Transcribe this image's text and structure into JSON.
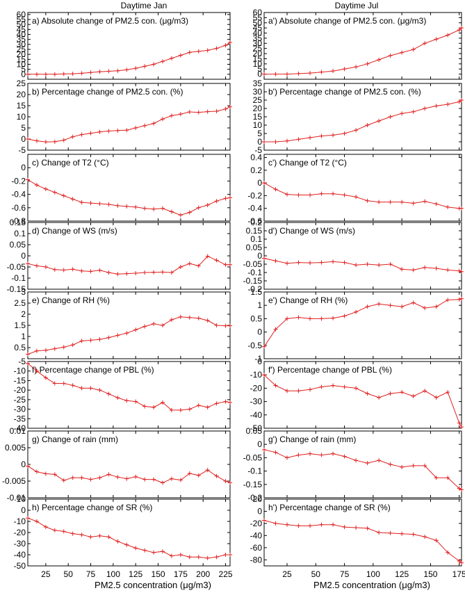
{
  "columns": [
    {
      "title": "Daytime Jan",
      "xlabel": "PM2.5 concentration (μg/m3)",
      "xticks": [
        "25",
        "50",
        "75",
        "100",
        "125",
        "150",
        "175",
        "200",
        "225"
      ]
    },
    {
      "title": "Daytime Jul",
      "xlabel": "PM2.5 concentration (μg/m3)",
      "xticks": [
        "25",
        "50",
        "75",
        "100",
        "125",
        "150",
        "175"
      ]
    }
  ],
  "chart_data": [
    {
      "type": "line",
      "column": 0,
      "label": "a) Absolute change of PM2.5 con. (μg/m3)",
      "xlim": [
        5,
        230
      ],
      "ylim": [
        -5,
        62
      ],
      "yticks": [
        0,
        5,
        10,
        15,
        20,
        25,
        30,
        35,
        40,
        45,
        50,
        55,
        60
      ],
      "x": [
        5,
        15,
        25,
        35,
        45,
        55,
        65,
        75,
        85,
        95,
        105,
        115,
        125,
        135,
        145,
        155,
        165,
        175,
        185,
        195,
        205,
        215,
        225,
        230
      ],
      "values": [
        0,
        0,
        0,
        0,
        0.3,
        0.5,
        1,
        1.8,
        2.5,
        3,
        3.5,
        4.5,
        6,
        8,
        10,
        13,
        16,
        19,
        22,
        23,
        24,
        26,
        29,
        32
      ]
    },
    {
      "type": "line",
      "column": 0,
      "label": "b) Percentage change of PM2.5 con. (%)",
      "xlim": [
        5,
        230
      ],
      "ylim": [
        -5,
        25
      ],
      "yticks": [
        -5,
        0,
        5,
        10,
        15,
        20,
        25
      ],
      "x": [
        5,
        15,
        25,
        35,
        45,
        55,
        65,
        75,
        85,
        95,
        105,
        115,
        125,
        135,
        145,
        155,
        165,
        175,
        185,
        195,
        205,
        215,
        225,
        230
      ],
      "values": [
        0,
        -0.8,
        -1.3,
        -1.2,
        -0.5,
        1,
        2,
        2.6,
        3.2,
        3.6,
        3.8,
        4,
        5,
        6,
        7,
        9,
        10.5,
        11.2,
        12.2,
        12,
        12.3,
        12.5,
        13.5,
        14.5
      ]
    },
    {
      "type": "line",
      "column": 0,
      "label": "c) Change of T2 (°C)",
      "xlim": [
        5,
        230
      ],
      "ylim": [
        -0.8,
        0.2
      ],
      "yticks": [
        -0.8,
        -0.6,
        -0.4,
        -0.2,
        0
      ],
      "x": [
        5,
        15,
        25,
        35,
        45,
        55,
        65,
        75,
        85,
        95,
        105,
        115,
        125,
        135,
        145,
        155,
        165,
        175,
        185,
        195,
        205,
        215,
        225,
        230
      ],
      "values": [
        -0.18,
        -0.26,
        -0.32,
        -0.37,
        -0.42,
        -0.47,
        -0.52,
        -0.53,
        -0.54,
        -0.55,
        -0.57,
        -0.58,
        -0.59,
        -0.61,
        -0.62,
        -0.61,
        -0.66,
        -0.71,
        -0.67,
        -0.6,
        -0.56,
        -0.5,
        -0.46,
        -0.45
      ]
    },
    {
      "type": "line",
      "column": 0,
      "label": "d) Change of WS (m/s)",
      "xlim": [
        5,
        230
      ],
      "ylim": [
        -0.15,
        0.15
      ],
      "yticks": [
        -0.15,
        -0.1,
        -0.05,
        0,
        0.05,
        0.1,
        0.15
      ],
      "x": [
        5,
        15,
        25,
        35,
        45,
        55,
        65,
        75,
        85,
        95,
        105,
        115,
        125,
        135,
        145,
        155,
        165,
        175,
        185,
        195,
        205,
        215,
        225,
        230
      ],
      "values": [
        -0.035,
        -0.045,
        -0.05,
        -0.062,
        -0.064,
        -0.06,
        -0.068,
        -0.07,
        -0.065,
        -0.075,
        -0.082,
        -0.08,
        -0.078,
        -0.075,
        -0.074,
        -0.073,
        -0.075,
        -0.05,
        -0.035,
        -0.045,
        -0.002,
        -0.02,
        -0.04,
        -0.04
      ]
    },
    {
      "type": "line",
      "column": 0,
      "label": "e) Change of RH (%)",
      "xlim": [
        5,
        230
      ],
      "ylim": [
        0,
        3
      ],
      "yticks": [
        0.5,
        1,
        1.5,
        2,
        2.5,
        3
      ],
      "x": [
        5,
        15,
        25,
        35,
        45,
        55,
        65,
        75,
        85,
        95,
        105,
        115,
        125,
        135,
        145,
        155,
        165,
        175,
        185,
        195,
        205,
        215,
        225,
        230
      ],
      "values": [
        0.2,
        0.35,
        0.38,
        0.45,
        0.52,
        0.62,
        0.8,
        0.83,
        0.87,
        0.95,
        1.05,
        1.15,
        1.3,
        1.45,
        1.57,
        1.5,
        1.75,
        1.88,
        1.85,
        1.82,
        1.72,
        1.5,
        1.48,
        1.48
      ]
    },
    {
      "type": "line",
      "column": 0,
      "label": "f) Percentage change of PBL (%)",
      "xlim": [
        5,
        230
      ],
      "ylim": [
        -40,
        -5
      ],
      "yticks": [
        -40,
        -35,
        -30,
        -25,
        -20,
        -15,
        -10,
        -5
      ],
      "x": [
        5,
        15,
        25,
        35,
        45,
        55,
        65,
        75,
        85,
        95,
        105,
        115,
        125,
        135,
        145,
        155,
        165,
        175,
        185,
        195,
        205,
        215,
        225,
        230
      ],
      "values": [
        -6,
        -10,
        -13.5,
        -16.5,
        -16.5,
        -17.5,
        -19,
        -19,
        -20,
        -22,
        -24,
        -25.5,
        -26,
        -28.5,
        -29,
        -26.5,
        -30.5,
        -30.5,
        -30,
        -28,
        -29,
        -27,
        -26,
        -26.5
      ]
    },
    {
      "type": "line",
      "column": 0,
      "label": "g) Change of rain (mm)",
      "xlim": [
        5,
        230
      ],
      "ylim": [
        -0.01,
        0.01
      ],
      "yticks": [
        -0.01,
        -0.005,
        0,
        0.005,
        0.01
      ],
      "x": [
        5,
        15,
        25,
        35,
        45,
        55,
        65,
        75,
        85,
        95,
        105,
        115,
        125,
        135,
        145,
        155,
        165,
        175,
        185,
        195,
        205,
        215,
        225,
        230
      ],
      "values": [
        -0.0005,
        -0.0022,
        -0.0028,
        -0.003,
        -0.0048,
        -0.004,
        -0.004,
        -0.0045,
        -0.004,
        -0.003,
        -0.0038,
        -0.0043,
        -0.0037,
        -0.0045,
        -0.0045,
        -0.0055,
        -0.0043,
        -0.0047,
        -0.0027,
        -0.0033,
        -0.0017,
        -0.0035,
        -0.005,
        -0.0055
      ]
    },
    {
      "type": "line",
      "column": 0,
      "label": "h) Percentage change of SR (%)",
      "xlim": [
        5,
        230
      ],
      "ylim": [
        -50,
        10
      ],
      "yticks": [
        -50,
        -40,
        -30,
        -20,
        -10,
        0,
        10
      ],
      "x": [
        5,
        15,
        25,
        35,
        45,
        55,
        65,
        75,
        85,
        95,
        105,
        115,
        125,
        135,
        145,
        155,
        165,
        175,
        185,
        195,
        205,
        215,
        225,
        230
      ],
      "values": [
        -7,
        -10,
        -15,
        -18,
        -19,
        -21,
        -22,
        -24,
        -23,
        -24,
        -28,
        -31,
        -34,
        -36,
        -38,
        -37,
        -41,
        -40,
        -42,
        -42,
        -43,
        -42,
        -40,
        -40
      ]
    },
    {
      "type": "line",
      "column": 1,
      "label": "a') Absolute change of PM2.5 con. (μg/m3)",
      "xlim": [
        5,
        177
      ],
      "ylim": [
        -5,
        60
      ],
      "yticks": [
        0,
        5,
        10,
        15,
        20,
        25,
        30,
        35,
        40,
        45,
        50,
        55,
        60
      ],
      "x": [
        5,
        15,
        25,
        35,
        45,
        55,
        65,
        75,
        85,
        95,
        105,
        115,
        125,
        135,
        145,
        155,
        165,
        175,
        177
      ],
      "values": [
        0,
        0,
        0,
        0.5,
        1,
        2,
        3,
        5,
        7,
        10,
        14,
        18,
        21,
        24,
        30,
        34,
        38,
        43,
        45
      ]
    },
    {
      "type": "line",
      "column": 1,
      "label": "b') Percentage change of PM2.5 con. (%)",
      "xlim": [
        5,
        177
      ],
      "ylim": [
        -5,
        35
      ],
      "yticks": [
        -5,
        0,
        5,
        10,
        15,
        20,
        25,
        30,
        35
      ],
      "x": [
        5,
        15,
        25,
        35,
        45,
        55,
        65,
        75,
        85,
        95,
        105,
        115,
        125,
        135,
        145,
        155,
        165,
        175,
        177
      ],
      "values": [
        0,
        0,
        0.5,
        1.5,
        2.5,
        3.5,
        4,
        5,
        7,
        10,
        12.5,
        15,
        17,
        18,
        20,
        21.5,
        22.5,
        24,
        25
      ]
    },
    {
      "type": "line",
      "column": 1,
      "label": "c') Change of T2 (°C)",
      "xlim": [
        5,
        177
      ],
      "ylim": [
        -0.6,
        0.45
      ],
      "yticks": [
        -0.6,
        -0.4,
        -0.2,
        0,
        0.2,
        0.4
      ],
      "x": [
        5,
        15,
        25,
        35,
        45,
        55,
        65,
        75,
        85,
        95,
        105,
        115,
        125,
        135,
        145,
        155,
        165,
        175,
        177
      ],
      "values": [
        0,
        -0.1,
        -0.18,
        -0.19,
        -0.19,
        -0.17,
        -0.17,
        -0.19,
        -0.22,
        -0.28,
        -0.3,
        -0.3,
        -0.3,
        -0.32,
        -0.29,
        -0.33,
        -0.38,
        -0.4,
        -0.4
      ]
    },
    {
      "type": "line",
      "column": 1,
      "label": "d') Change of WS (m/s)",
      "xlim": [
        5,
        177
      ],
      "ylim": [
        -0.2,
        0.2
      ],
      "yticks": [
        -0.2,
        -0.15,
        -0.1,
        -0.05,
        0,
        0.05,
        0.1,
        0.15,
        0.2
      ],
      "x": [
        5,
        15,
        25,
        35,
        45,
        55,
        65,
        75,
        85,
        95,
        105,
        115,
        125,
        135,
        145,
        155,
        165,
        175,
        177
      ],
      "values": [
        -0.015,
        -0.03,
        -0.045,
        -0.04,
        -0.042,
        -0.04,
        -0.035,
        -0.04,
        -0.055,
        -0.05,
        -0.055,
        -0.05,
        -0.08,
        -0.085,
        -0.07,
        -0.075,
        -0.085,
        -0.09,
        -0.095
      ]
    },
    {
      "type": "line",
      "column": 1,
      "label": "e') Change of RH (%)",
      "xlim": [
        5,
        177
      ],
      "ylim": [
        -1,
        1.5
      ],
      "yticks": [
        -1,
        -0.5,
        0,
        0.5,
        1,
        1.5
      ],
      "x": [
        5,
        15,
        25,
        35,
        45,
        55,
        65,
        75,
        85,
        95,
        105,
        115,
        125,
        135,
        145,
        155,
        165,
        175,
        177
      ],
      "values": [
        -0.55,
        0.1,
        0.5,
        0.55,
        0.5,
        0.5,
        0.52,
        0.6,
        0.75,
        0.95,
        1.05,
        1.0,
        0.95,
        1.1,
        0.9,
        0.95,
        1.2,
        1.22,
        1.25
      ]
    },
    {
      "type": "line",
      "column": 1,
      "label": "f') Percentage change of PBL (%)",
      "xlim": [
        5,
        177
      ],
      "ylim": [
        -50,
        0
      ],
      "yticks": [
        -50,
        -40,
        -30,
        -20,
        -10,
        0
      ],
      "x": [
        5,
        15,
        25,
        35,
        45,
        55,
        65,
        75,
        85,
        95,
        105,
        115,
        125,
        135,
        145,
        155,
        165,
        175,
        177
      ],
      "values": [
        -10,
        -18,
        -22,
        -22,
        -21,
        -19,
        -18,
        -19,
        -20,
        -24,
        -27,
        -24,
        -23,
        -26,
        -22,
        -27,
        -23,
        -46,
        -49
      ]
    },
    {
      "type": "line",
      "column": 1,
      "label": "g') Change of rain (mm)",
      "xlim": [
        5,
        177
      ],
      "ylim": [
        -0.2,
        0.05
      ],
      "yticks": [
        -0.2,
        -0.15,
        -0.1,
        -0.05,
        0,
        0.05
      ],
      "x": [
        5,
        15,
        25,
        35,
        45,
        55,
        65,
        75,
        85,
        95,
        105,
        115,
        125,
        135,
        145,
        155,
        165,
        175,
        177
      ],
      "values": [
        -0.02,
        -0.03,
        -0.05,
        -0.04,
        -0.035,
        -0.04,
        -0.035,
        -0.045,
        -0.06,
        -0.07,
        -0.06,
        -0.075,
        -0.085,
        -0.08,
        -0.08,
        -0.125,
        -0.125,
        -0.165,
        -0.17
      ]
    },
    {
      "type": "line",
      "column": 1,
      "label": "h') Percentage change of SR (%)",
      "xlim": [
        5,
        177
      ],
      "ylim": [
        -90,
        20
      ],
      "yticks": [
        -80,
        -60,
        -40,
        -20,
        0,
        20
      ],
      "x": [
        5,
        15,
        25,
        35,
        45,
        55,
        65,
        75,
        85,
        95,
        105,
        115,
        125,
        135,
        145,
        155,
        165,
        175,
        177
      ],
      "values": [
        -15,
        -20,
        -22,
        -24,
        -24,
        -22,
        -22,
        -26,
        -27,
        -28,
        -35,
        -36,
        -37,
        -38,
        -42,
        -48,
        -68,
        -82,
        -85
      ]
    }
  ]
}
